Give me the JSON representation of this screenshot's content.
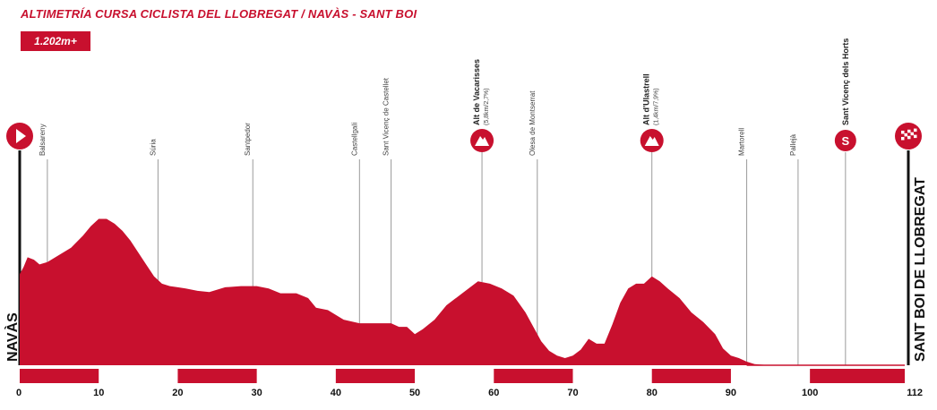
{
  "header": {
    "title": "ALTIMETRÍA CURSA CICLISTA DEL LLOBREGAT / NAVÀS - SANT BOI",
    "elevation_badge": "1.202m+"
  },
  "colors": {
    "accent": "#c8102e",
    "profile": "#c8102e",
    "leader_line": "#9a9a9a"
  },
  "chart_data": {
    "type": "area",
    "title": "ALTIMETRÍA CURSA CICLISTA DEL LLOBREGAT / NAVÀS - SANT BOI",
    "xlabel": "",
    "ylabel": "",
    "xlim": [
      0,
      112
    ],
    "x_ticks": [
      0,
      10,
      20,
      30,
      40,
      50,
      60,
      70,
      80,
      90,
      100,
      112
    ],
    "x_tick_labels": [
      "0",
      "10",
      "20",
      "30",
      "40",
      "50",
      "60",
      "70",
      "80",
      "90",
      "100",
      "112"
    ],
    "elevation_units": "relative",
    "profile": [
      [
        0,
        0.38
      ],
      [
        0.5,
        0.41
      ],
      [
        1,
        0.45
      ],
      [
        1.8,
        0.44
      ],
      [
        2.5,
        0.42
      ],
      [
        3.5,
        0.43
      ],
      [
        5,
        0.46
      ],
      [
        6.5,
        0.49
      ],
      [
        8,
        0.54
      ],
      [
        9,
        0.58
      ],
      [
        10,
        0.61
      ],
      [
        11,
        0.61
      ],
      [
        12,
        0.59
      ],
      [
        13,
        0.56
      ],
      [
        14,
        0.52
      ],
      [
        15,
        0.47
      ],
      [
        16,
        0.42
      ],
      [
        17,
        0.37
      ],
      [
        18,
        0.34
      ],
      [
        19,
        0.33
      ],
      [
        20,
        0.325
      ],
      [
        21,
        0.32
      ],
      [
        22.5,
        0.31
      ],
      [
        24,
        0.305
      ],
      [
        26,
        0.325
      ],
      [
        28,
        0.33
      ],
      [
        30,
        0.33
      ],
      [
        31.5,
        0.32
      ],
      [
        33,
        0.3
      ],
      [
        35,
        0.3
      ],
      [
        36.5,
        0.28
      ],
      [
        37.5,
        0.24
      ],
      [
        39,
        0.23
      ],
      [
        41,
        0.19
      ],
      [
        43,
        0.175
      ],
      [
        45,
        0.175
      ],
      [
        47,
        0.175
      ],
      [
        48,
        0.16
      ],
      [
        49,
        0.16
      ],
      [
        50,
        0.13
      ],
      [
        51,
        0.15
      ],
      [
        52.5,
        0.19
      ],
      [
        54,
        0.25
      ],
      [
        56,
        0.3
      ],
      [
        58,
        0.35
      ],
      [
        59.5,
        0.34
      ],
      [
        61,
        0.32
      ],
      [
        62.5,
        0.29
      ],
      [
        64,
        0.22
      ],
      [
        65,
        0.16
      ],
      [
        66,
        0.1
      ],
      [
        67,
        0.06
      ],
      [
        68,
        0.04
      ],
      [
        69,
        0.03
      ],
      [
        70,
        0.04
      ],
      [
        71,
        0.065
      ],
      [
        72,
        0.11
      ],
      [
        73,
        0.09
      ],
      [
        74,
        0.09
      ],
      [
        75,
        0.17
      ],
      [
        76,
        0.26
      ],
      [
        77,
        0.32
      ],
      [
        78,
        0.34
      ],
      [
        79,
        0.34
      ],
      [
        80,
        0.37
      ],
      [
        81,
        0.35
      ],
      [
        82,
        0.32
      ],
      [
        83.5,
        0.28
      ],
      [
        85,
        0.22
      ],
      [
        86.5,
        0.18
      ],
      [
        88,
        0.13
      ],
      [
        89,
        0.07
      ],
      [
        90,
        0.04
      ],
      [
        91,
        0.03
      ],
      [
        92,
        0.015
      ],
      [
        93,
        0.005
      ],
      [
        95,
        0.0
      ],
      [
        112,
        0.0
      ]
    ],
    "places": [
      {
        "name": "Balsareny",
        "km": 3.5
      },
      {
        "name": "Súria",
        "km": 17.5
      },
      {
        "name": "Santpedor",
        "km": 29.5
      },
      {
        "name": "Castellgalí",
        "km": 43
      },
      {
        "name": "Sant Vicenç de Castellet",
        "km": 47
      },
      {
        "name": "Olesa de Montserrat",
        "km": 65.5
      },
      {
        "name": "Martorell",
        "km": 92
      },
      {
        "name": "Pallejà",
        "km": 98.5
      }
    ],
    "climbs": [
      {
        "name": "Alt de Vacarisses",
        "detail": "(5,8km/2,7%)",
        "km": 58.5
      },
      {
        "name": "Alt d'Ulastrell",
        "detail": "(1,4km/7,9%)",
        "km": 80
      }
    ],
    "sprints": [
      {
        "name": "Sant Vicenç dels Horts",
        "km": 104.5,
        "symbol": "S"
      }
    ],
    "start": {
      "name": "NAVÀS",
      "km": 0
    },
    "finish": {
      "name": "SANT BOI DE LLOBREGAT",
      "km": 112
    },
    "km_bands": [
      [
        0,
        10
      ],
      [
        20,
        30
      ],
      [
        40,
        50
      ],
      [
        60,
        70
      ],
      [
        80,
        90
      ],
      [
        100,
        112
      ]
    ]
  }
}
